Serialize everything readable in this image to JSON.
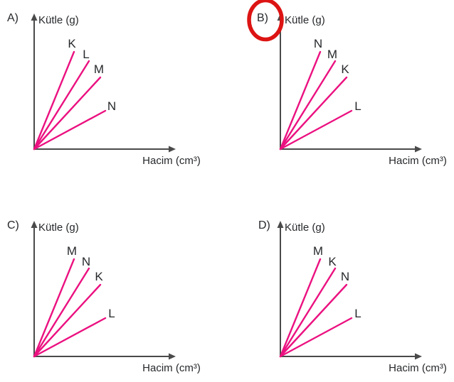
{
  "figure": {
    "question_type": "multiple-choice density graphs",
    "y_axis_label": "Kütle (g)",
    "x_axis_label": "Hacim (cm³)",
    "colors": {
      "line": "#eb1180",
      "axis": "#4a4a4a",
      "text": "#26282b",
      "answer_circle": "#dc1413"
    },
    "options": [
      {
        "letter": "A)",
        "lines": [
          "K",
          "L",
          "M",
          "N"
        ],
        "circled": false
      },
      {
        "letter": "B)",
        "lines": [
          "N",
          "M",
          "K",
          "L"
        ],
        "circled": true
      },
      {
        "letter": "C)",
        "lines": [
          "M",
          "N",
          "K",
          "L"
        ],
        "circled": false
      },
      {
        "letter": "D)",
        "lines": [
          "M",
          "K",
          "N",
          "L"
        ],
        "circled": false
      }
    ],
    "circled_option": "B"
  },
  "chart_data": [
    {
      "type": "line",
      "title": "A)",
      "xlabel": "Hacim (cm³)",
      "ylabel": "Kütle (g)",
      "axes_numeric": false,
      "legend_position": "end-of-line labels",
      "grid": false,
      "series": [
        {
          "name": "K",
          "slope_g_per_cm3": 2.45,
          "steepness_rank": 1
        },
        {
          "name": "L",
          "slope_g_per_cm3": 1.61,
          "steepness_rank": 2
        },
        {
          "name": "M",
          "slope_g_per_cm3": 1.09,
          "steepness_rank": 3
        },
        {
          "name": "N",
          "slope_g_per_cm3": 0.54,
          "steepness_rank": 4
        }
      ]
    },
    {
      "type": "line",
      "title": "B)",
      "xlabel": "Hacim (cm³)",
      "ylabel": "Kütle (g)",
      "axes_numeric": false,
      "legend_position": "end-of-line labels",
      "grid": false,
      "annotation": "circled in red (marked answer)",
      "series": [
        {
          "name": "N",
          "slope_g_per_cm3": 2.45,
          "steepness_rank": 1
        },
        {
          "name": "M",
          "slope_g_per_cm3": 1.61,
          "steepness_rank": 2
        },
        {
          "name": "K",
          "slope_g_per_cm3": 1.09,
          "steepness_rank": 3
        },
        {
          "name": "L",
          "slope_g_per_cm3": 0.54,
          "steepness_rank": 4
        }
      ]
    },
    {
      "type": "line",
      "title": "C)",
      "xlabel": "Hacim (cm³)",
      "ylabel": "Kütle (g)",
      "axes_numeric": false,
      "legend_position": "end-of-line labels",
      "grid": false,
      "series": [
        {
          "name": "M",
          "slope_g_per_cm3": 2.45,
          "steepness_rank": 1
        },
        {
          "name": "N",
          "slope_g_per_cm3": 1.61,
          "steepness_rank": 2
        },
        {
          "name": "K",
          "slope_g_per_cm3": 1.09,
          "steepness_rank": 3
        },
        {
          "name": "L",
          "slope_g_per_cm3": 0.54,
          "steepness_rank": 4
        }
      ]
    },
    {
      "type": "line",
      "title": "D)",
      "xlabel": "Hacim (cm³)",
      "ylabel": "Kütle (g)",
      "axes_numeric": false,
      "legend_position": "end-of-line labels",
      "grid": false,
      "series": [
        {
          "name": "M",
          "slope_g_per_cm3": 2.45,
          "steepness_rank": 1
        },
        {
          "name": "K",
          "slope_g_per_cm3": 1.61,
          "steepness_rank": 2
        },
        {
          "name": "N",
          "slope_g_per_cm3": 1.09,
          "steepness_rank": 3
        },
        {
          "name": "L",
          "slope_g_per_cm3": 0.54,
          "steepness_rank": 4
        }
      ]
    }
  ]
}
